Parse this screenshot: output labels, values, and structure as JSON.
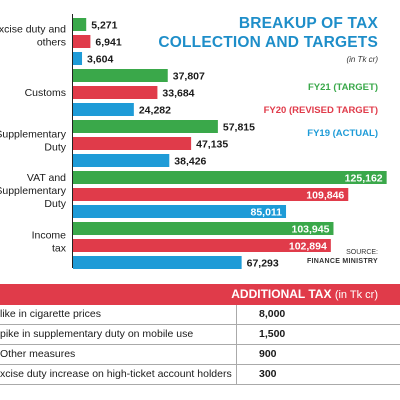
{
  "chart_data": {
    "type": "bar",
    "orientation": "horizontal",
    "title": "BREAKUP OF TAX COLLECTION AND TARGETS",
    "unit": "(in Tk cr)",
    "categories": [
      "Excise duty and others",
      "Customs",
      "Supplementary Duty",
      "VAT and Supplementary Duty",
      "Income tax"
    ],
    "category_lines": [
      [
        "Excise duty and",
        "others"
      ],
      [
        "Customs"
      ],
      [
        "Supplementary",
        "Duty"
      ],
      [
        "VAT and",
        "Supplementary",
        "Duty"
      ],
      [
        "Income",
        "tax"
      ]
    ],
    "series": [
      {
        "name": "FY21 (TARGET)",
        "color": "#3aa84a",
        "values": [
          5271,
          37807,
          57815,
          125162,
          103945
        ],
        "labels": [
          "5,271",
          "37,807",
          "57,815",
          "125,162",
          "103,945"
        ]
      },
      {
        "name": "FY20 (REVISED TARGET)",
        "color": "#e03b4a",
        "values": [
          6941,
          33684,
          47135,
          109846,
          102894
        ],
        "labels": [
          "6,941",
          "33,684",
          "47,135",
          "109,846",
          "102,894"
        ]
      },
      {
        "name": "FY19 (ACTUAL)",
        "color": "#1e9bd7",
        "values": [
          3604,
          24282,
          38426,
          85011,
          67293
        ],
        "labels": [
          "3,604",
          "24,282",
          "38,426",
          "85,011",
          "67,293"
        ]
      }
    ],
    "legend_position": "right",
    "grid": false,
    "source": "SOURCE:",
    "source_org": "FINANCE MINISTRY"
  },
  "additional_tax": {
    "title": "ADDITIONAL TAX",
    "unit": "(in Tk cr)",
    "rows": [
      {
        "item": "like in cigarette prices",
        "value": "8,000"
      },
      {
        "item": "pike in supplementary duty on mobile use",
        "value": "1,500"
      },
      {
        "item": "Other measures",
        "value": "900"
      },
      {
        "item": "xcise duty increase on high-ticket account holders",
        "value": "300"
      }
    ]
  }
}
